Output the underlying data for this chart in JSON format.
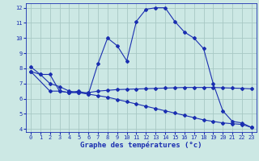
{
  "title": "Graphe des températures (°c)",
  "bg_color": "#cce8e4",
  "grid_color": "#a8c8c4",
  "line_color": "#1a2eb0",
  "line1_x": [
    0,
    1,
    2,
    3,
    4,
    5,
    6,
    7,
    8,
    9,
    10,
    11,
    12,
    13,
    14,
    15,
    16,
    17,
    18,
    19,
    20,
    21,
    22,
    23
  ],
  "line1_y": [
    8.1,
    7.6,
    7.6,
    6.5,
    6.4,
    6.5,
    6.3,
    8.3,
    10.0,
    9.5,
    8.5,
    11.1,
    11.9,
    12.0,
    12.0,
    11.1,
    10.4,
    10.0,
    9.3,
    7.0,
    5.2,
    4.5,
    4.4,
    4.1
  ],
  "line2_x": [
    0,
    2,
    3,
    4,
    5,
    6,
    7,
    8,
    9,
    10,
    11,
    12,
    13,
    14,
    15,
    16,
    17,
    18,
    19,
    20,
    21,
    22,
    23
  ],
  "line2_y": [
    7.8,
    6.5,
    6.5,
    6.4,
    6.4,
    6.4,
    6.5,
    6.55,
    6.6,
    6.62,
    6.64,
    6.66,
    6.68,
    6.7,
    6.72,
    6.74,
    6.74,
    6.74,
    6.74,
    6.72,
    6.7,
    6.68,
    6.65
  ],
  "line3_x": [
    0,
    1,
    2,
    3,
    4,
    5,
    6,
    7,
    8,
    9,
    10,
    11,
    12,
    13,
    14,
    15,
    16,
    17,
    18,
    19,
    20,
    21,
    22,
    23
  ],
  "line3_y": [
    7.8,
    7.6,
    7.0,
    6.8,
    6.5,
    6.4,
    6.3,
    6.2,
    6.1,
    5.95,
    5.8,
    5.65,
    5.5,
    5.35,
    5.2,
    5.05,
    4.9,
    4.75,
    4.6,
    4.5,
    4.4,
    4.35,
    4.3,
    4.1
  ],
  "xlim": [
    -0.5,
    23.5
  ],
  "ylim": [
    3.8,
    12.3
  ],
  "xticks": [
    0,
    1,
    2,
    3,
    4,
    5,
    6,
    7,
    8,
    9,
    10,
    11,
    12,
    13,
    14,
    15,
    16,
    17,
    18,
    19,
    20,
    21,
    22,
    23
  ],
  "yticks": [
    4,
    5,
    6,
    7,
    8,
    9,
    10,
    11,
    12
  ],
  "xlabel_fontsize": 6.5,
  "tick_fontsize": 5.0,
  "marker": "D",
  "marker_size": 2.0,
  "linewidth": 0.8
}
